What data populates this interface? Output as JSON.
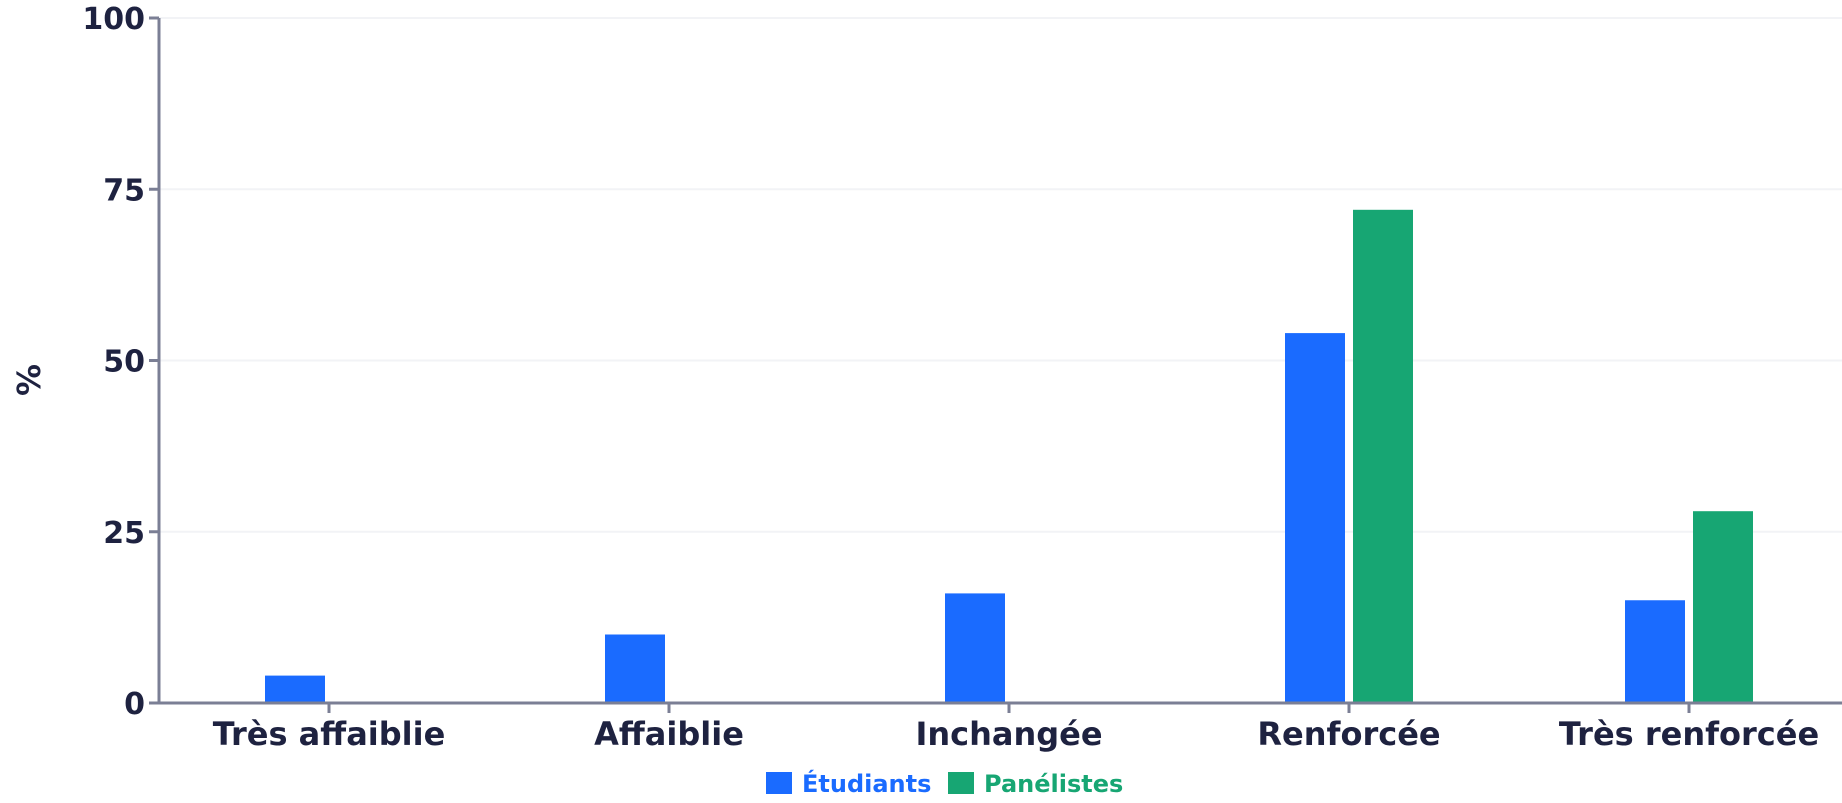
{
  "chart_data": {
    "type": "bar",
    "categories": [
      "Très affaiblie",
      "Affaiblie",
      "Inchangée",
      "Renforcée",
      "Très renforcée"
    ],
    "series": [
      {
        "name": "Étudiants",
        "values": [
          4,
          10,
          16,
          54,
          15
        ],
        "color": "#1a6bff"
      },
      {
        "name": "Panélistes",
        "values": [
          0,
          0,
          0,
          72,
          28
        ],
        "color": "#17a673"
      }
    ],
    "y_ticks": [
      "0",
      "25",
      "50",
      "75",
      "100"
    ],
    "ylabel": "%",
    "ylim": [
      0,
      100
    ],
    "grid": true,
    "legend": "bottom-center",
    "colors": {
      "text": "#1e2240",
      "axis": "#7b7f95",
      "grid": "#f2f3f6"
    }
  }
}
